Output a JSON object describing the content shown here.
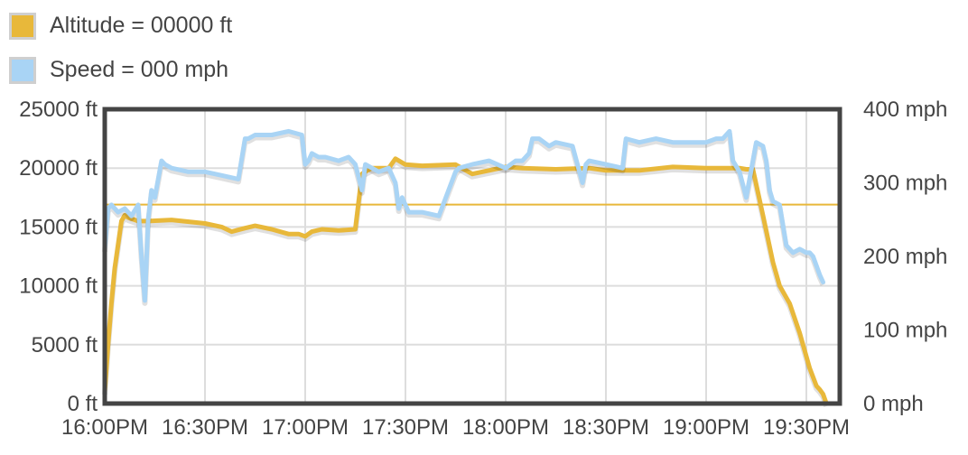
{
  "legend": {
    "items": [
      {
        "label": "Altitude = 00000 ft",
        "color": "#e8b83a"
      },
      {
        "label": "Speed = 000 mph",
        "color": "#a9d4f5"
      }
    ]
  },
  "chart_data": {
    "type": "line",
    "x_unit": "minutes after 16:00",
    "left_axis": {
      "ticks": [
        0,
        5000,
        10000,
        15000,
        20000,
        25000
      ],
      "tick_labels": [
        "0 ft",
        "5000 ft",
        "10000 ft",
        "15000 ft",
        "20000 ft",
        "25000 ft"
      ],
      "range": [
        0,
        25000
      ]
    },
    "right_axis": {
      "ticks": [
        0,
        100,
        200,
        300,
        400
      ],
      "tick_labels": [
        "0 mph",
        "100 mph",
        "200 mph",
        "300 mph",
        "400 mph"
      ],
      "range": [
        0,
        400
      ]
    },
    "x_axis": {
      "ticks": [
        "16:00",
        "16:30",
        "17:00",
        "17:30",
        "18:00",
        "18:30",
        "19:00",
        "19:30"
      ],
      "tick_labels": [
        "16:00PM",
        "16:30PM",
        "17:00PM",
        "17:30PM",
        "18:00PM",
        "18:30PM",
        "19:00PM",
        "19:30PM"
      ],
      "range": [
        "16:00",
        "19:40"
      ]
    },
    "reference_line": {
      "value_ft": 16900,
      "color": "#e8b83a"
    },
    "series": [
      {
        "name": "Altitude",
        "axis": "left",
        "color": "#e8b83a",
        "x": [
          "16:00",
          "16:01",
          "16:02",
          "16:03",
          "16:04",
          "16:05",
          "16:06",
          "16:07",
          "16:10",
          "16:13",
          "16:20",
          "16:30",
          "16:35",
          "16:38",
          "16:42",
          "16:45",
          "16:50",
          "16:55",
          "16:58",
          "17:00",
          "17:02",
          "17:05",
          "17:10",
          "17:15",
          "17:17",
          "17:18",
          "17:20",
          "17:25",
          "17:27",
          "17:30",
          "17:35",
          "17:45",
          "17:50",
          "18:00",
          "18:05",
          "18:15",
          "18:25",
          "18:30",
          "18:40",
          "18:50",
          "19:00",
          "19:10",
          "19:12",
          "19:14",
          "19:17",
          "19:20",
          "19:22",
          "19:25",
          "19:28",
          "19:31",
          "19:33",
          "19:34",
          "19:35",
          "19:36"
        ],
        "y": [
          1000,
          5000,
          8500,
          11500,
          13500,
          15500,
          16000,
          15800,
          15500,
          15500,
          15600,
          15300,
          15000,
          14600,
          14900,
          15100,
          14800,
          14400,
          14400,
          14200,
          14600,
          14800,
          14700,
          14800,
          19500,
          19700,
          20000,
          20000,
          20800,
          20300,
          20200,
          20300,
          19500,
          20100,
          20000,
          19900,
          20000,
          19800,
          19800,
          20100,
          20000,
          20000,
          19900,
          19900,
          16000,
          12000,
          10000,
          8500,
          6000,
          3000,
          1500,
          1200,
          800,
          0
        ]
      },
      {
        "name": "Speed",
        "axis": "right",
        "color": "#a9d4f5",
        "x": [
          "16:00",
          "16:01",
          "16:02",
          "16:04",
          "16:06",
          "16:08",
          "16:10",
          "16:11",
          "16:12",
          "16:13",
          "16:14",
          "16:15",
          "16:17",
          "16:18",
          "16:20",
          "16:25",
          "16:30",
          "16:35",
          "16:40",
          "16:42",
          "16:43",
          "16:45",
          "16:50",
          "16:55",
          "16:59",
          "17:00",
          "17:01",
          "17:02",
          "17:04",
          "17:06",
          "17:10",
          "17:13",
          "17:15",
          "17:17",
          "17:18",
          "17:20",
          "17:22",
          "17:25",
          "17:27",
          "17:28",
          "17:29",
          "17:31",
          "17:35",
          "17:40",
          "17:45",
          "17:46",
          "17:50",
          "17:55",
          "18:00",
          "18:03",
          "18:05",
          "18:07",
          "18:08",
          "18:10",
          "18:13",
          "18:15",
          "18:20",
          "18:23",
          "18:24",
          "18:25",
          "18:30",
          "18:35",
          "18:36",
          "18:40",
          "18:45",
          "18:50",
          "18:55",
          "19:00",
          "19:03",
          "19:05",
          "19:07",
          "19:08",
          "19:10",
          "19:12",
          "19:15",
          "19:17",
          "19:18",
          "19:19",
          "19:20",
          "19:22",
          "19:24",
          "19:26",
          "19:28",
          "19:30",
          "19:31",
          "19:32",
          "19:34",
          "19:35"
        ],
        "y": [
          210,
          265,
          270,
          260,
          265,
          255,
          270,
          200,
          140,
          250,
          290,
          280,
          330,
          325,
          320,
          315,
          315,
          310,
          305,
          360,
          360,
          365,
          365,
          370,
          365,
          325,
          330,
          340,
          335,
          335,
          330,
          335,
          325,
          290,
          325,
          320,
          315,
          320,
          300,
          265,
          280,
          260,
          260,
          255,
          315,
          320,
          325,
          330,
          320,
          330,
          330,
          340,
          360,
          360,
          350,
          355,
          350,
          300,
          325,
          330,
          325,
          320,
          360,
          355,
          360,
          355,
          355,
          355,
          360,
          360,
          370,
          330,
          315,
          280,
          355,
          350,
          330,
          290,
          275,
          270,
          215,
          205,
          210,
          205,
          205,
          200,
          175,
          165
        ]
      }
    ]
  }
}
